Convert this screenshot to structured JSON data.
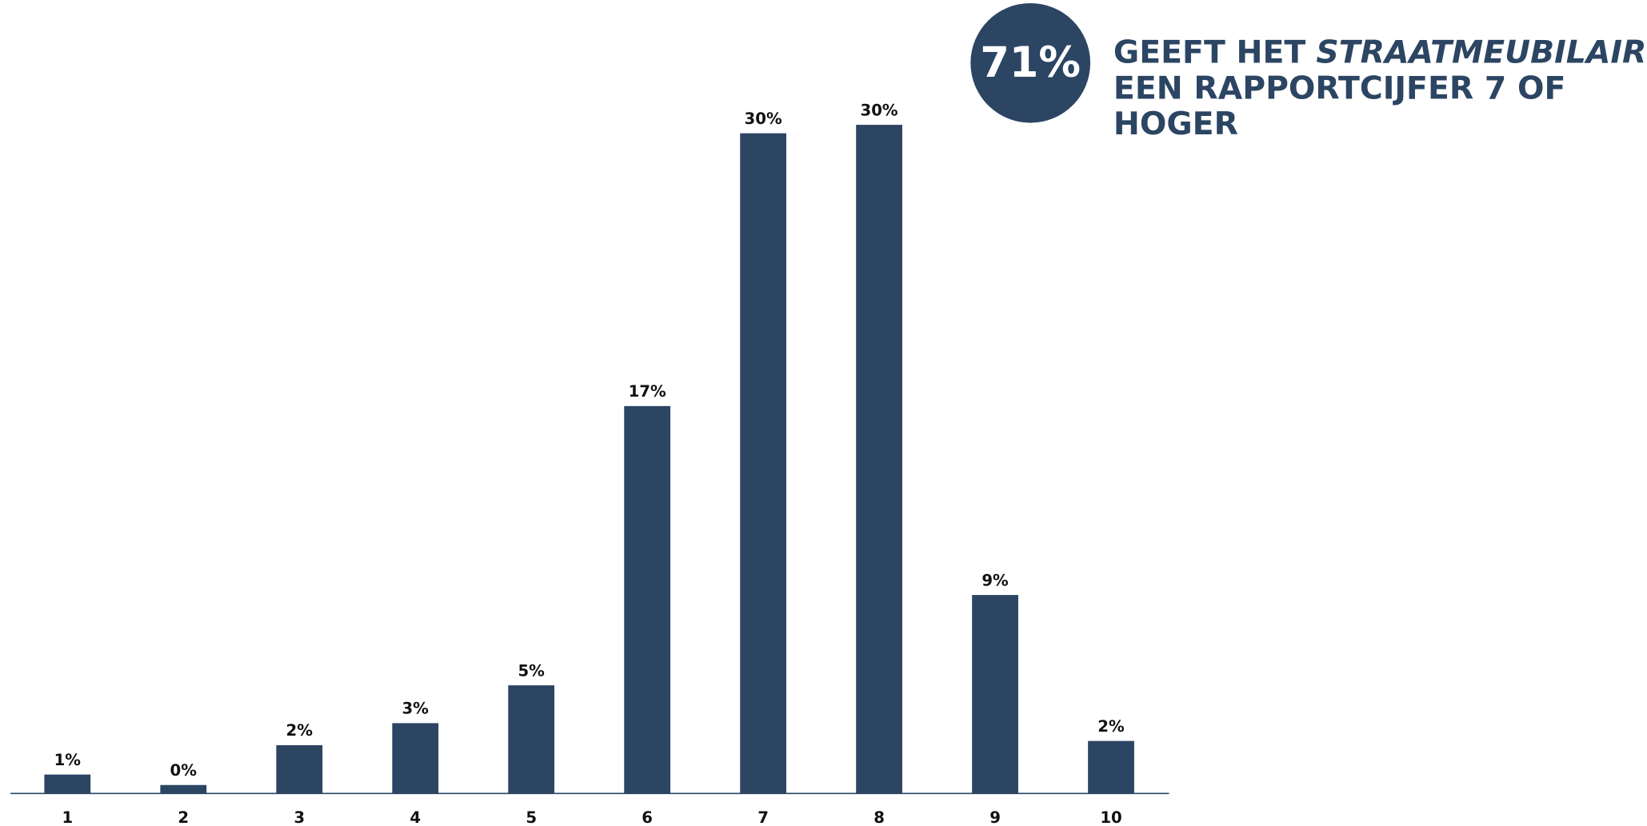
{
  "chart_data": {
    "type": "bar",
    "categories": [
      "1",
      "2",
      "3",
      "4",
      "5",
      "6",
      "7",
      "8",
      "9",
      "10"
    ],
    "values": [
      0.85,
      0.38,
      2.17,
      3.16,
      4.86,
      17.41,
      29.67,
      30.05,
      8.92,
      2.36
    ],
    "value_labels": [
      "1%",
      "0%",
      "2%",
      "3%",
      "5%",
      "17%",
      "30%",
      "30%",
      "9%",
      "2%"
    ],
    "color": "#2b4563",
    "ylim": [
      0,
      35
    ],
    "grid": false,
    "callout": {
      "value": 71,
      "label": "71%",
      "lines": [
        [
          "GEEFT HET",
          "STRAATMEUBILAIR"
        ],
        [
          "EEN RAPPORTCIJFER 7 OF"
        ],
        [
          "HOGER"
        ]
      ]
    }
  }
}
